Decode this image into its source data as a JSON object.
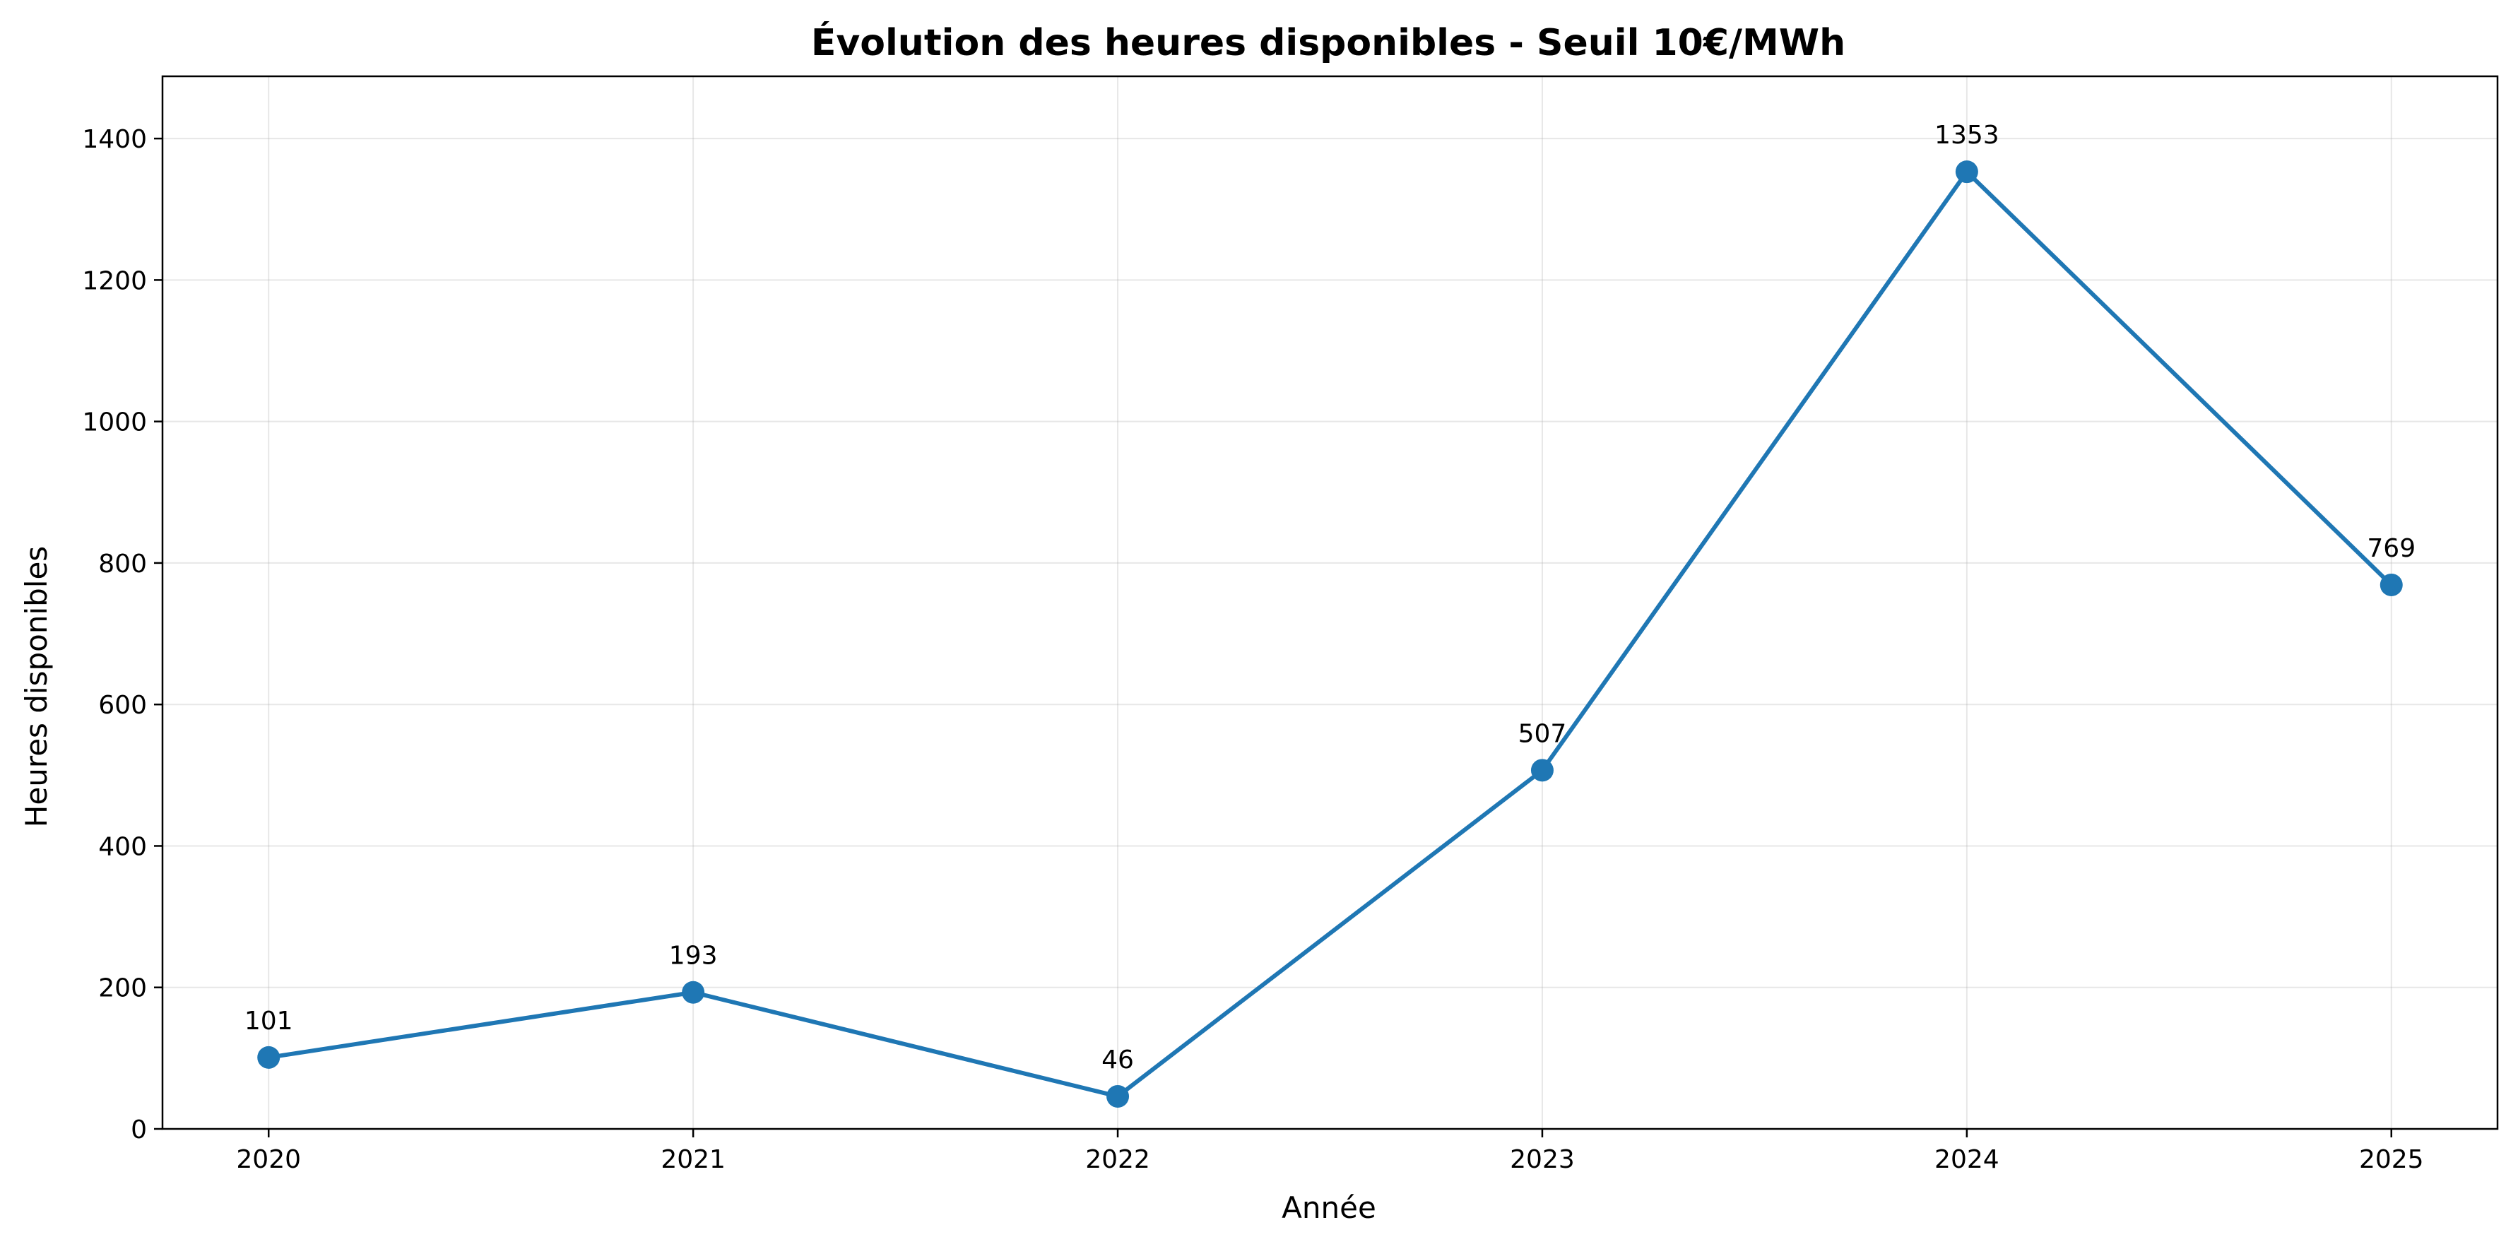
{
  "chart_data": {
    "type": "line",
    "title": "Évolution des heures disponibles - Seuil 10€/MWh",
    "xlabel": "Année",
    "ylabel": "Heures disponibles",
    "categories": [
      "2020",
      "2021",
      "2022",
      "2023",
      "2024",
      "2025"
    ],
    "x": [
      2020,
      2021,
      2022,
      2023,
      2024,
      2025
    ],
    "values": [
      101,
      193,
      46,
      507,
      1353,
      769
    ],
    "data_labels": [
      "101",
      "193",
      "46",
      "507",
      "1353",
      "769"
    ],
    "xlim": [
      2019.75,
      2025.25
    ],
    "ylim": [
      0,
      1488
    ],
    "yticks": [
      0,
      200,
      400,
      600,
      800,
      1000,
      1200,
      1400
    ],
    "ytick_labels": [
      "0",
      "200",
      "400",
      "600",
      "800",
      "1000",
      "1200",
      "1400"
    ],
    "grid": true,
    "legend": "none",
    "line_color": "#1f77b4"
  }
}
